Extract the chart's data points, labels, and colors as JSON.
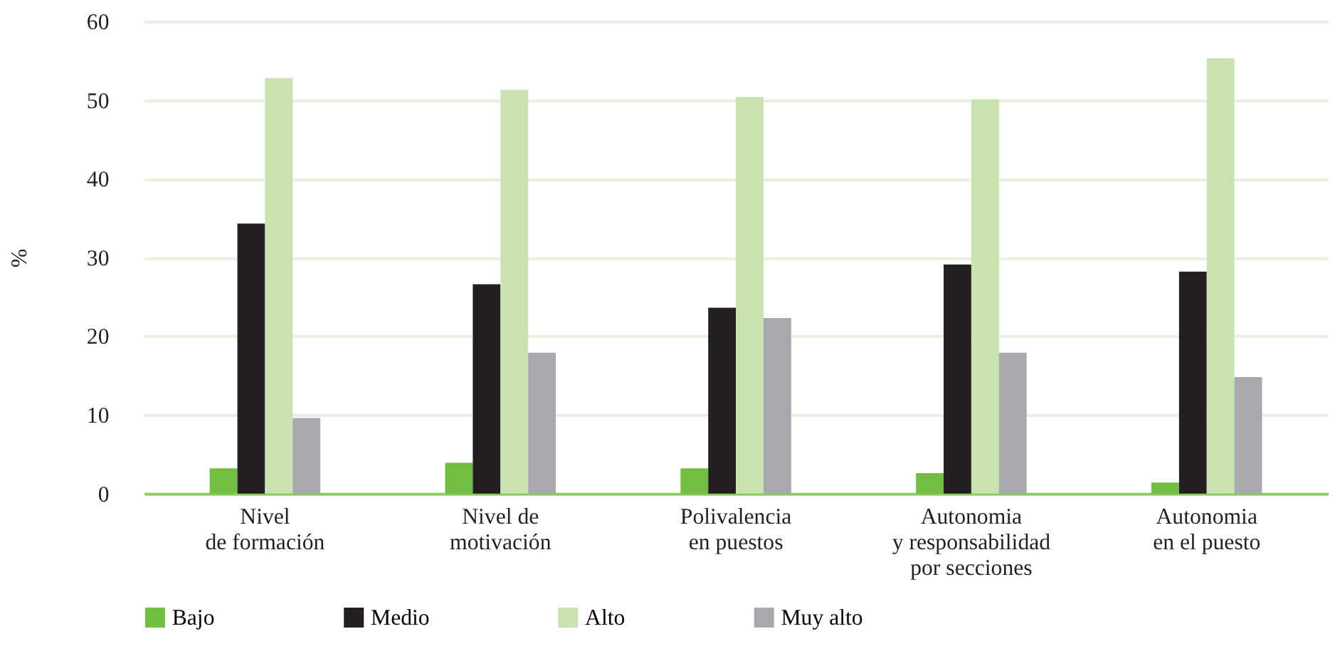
{
  "chart_data": {
    "type": "bar",
    "ylabel": "%",
    "categories": [
      "Nivel\nde formación",
      "Nivel de\nmotivación",
      "Polivalencia\nen puestos",
      "Autonomia\ny responsabilidad\npor secciones",
      "Autonomia\nen el puesto"
    ],
    "series": [
      {
        "name": "Bajo",
        "color": "#74bd43",
        "values": [
          3.2,
          3.9,
          3.2,
          2.6,
          1.4
        ]
      },
      {
        "name": "Medio",
        "color": "#231f20",
        "values": [
          34.3,
          26.6,
          23.6,
          29.1,
          28.2
        ]
      },
      {
        "name": "Alto",
        "color": "#c8e2b0",
        "values": [
          52.8,
          51.3,
          50.4,
          50.1,
          55.3
        ]
      },
      {
        "name": "Muy alto",
        "color": "#a8a9ad",
        "values": [
          9.6,
          17.9,
          22.3,
          17.9,
          14.8
        ]
      }
    ],
    "ylim": [
      0,
      60
    ],
    "yticks": [
      0,
      10,
      20,
      30,
      40,
      50,
      60
    ],
    "grid": "y",
    "legend": "bottom"
  }
}
